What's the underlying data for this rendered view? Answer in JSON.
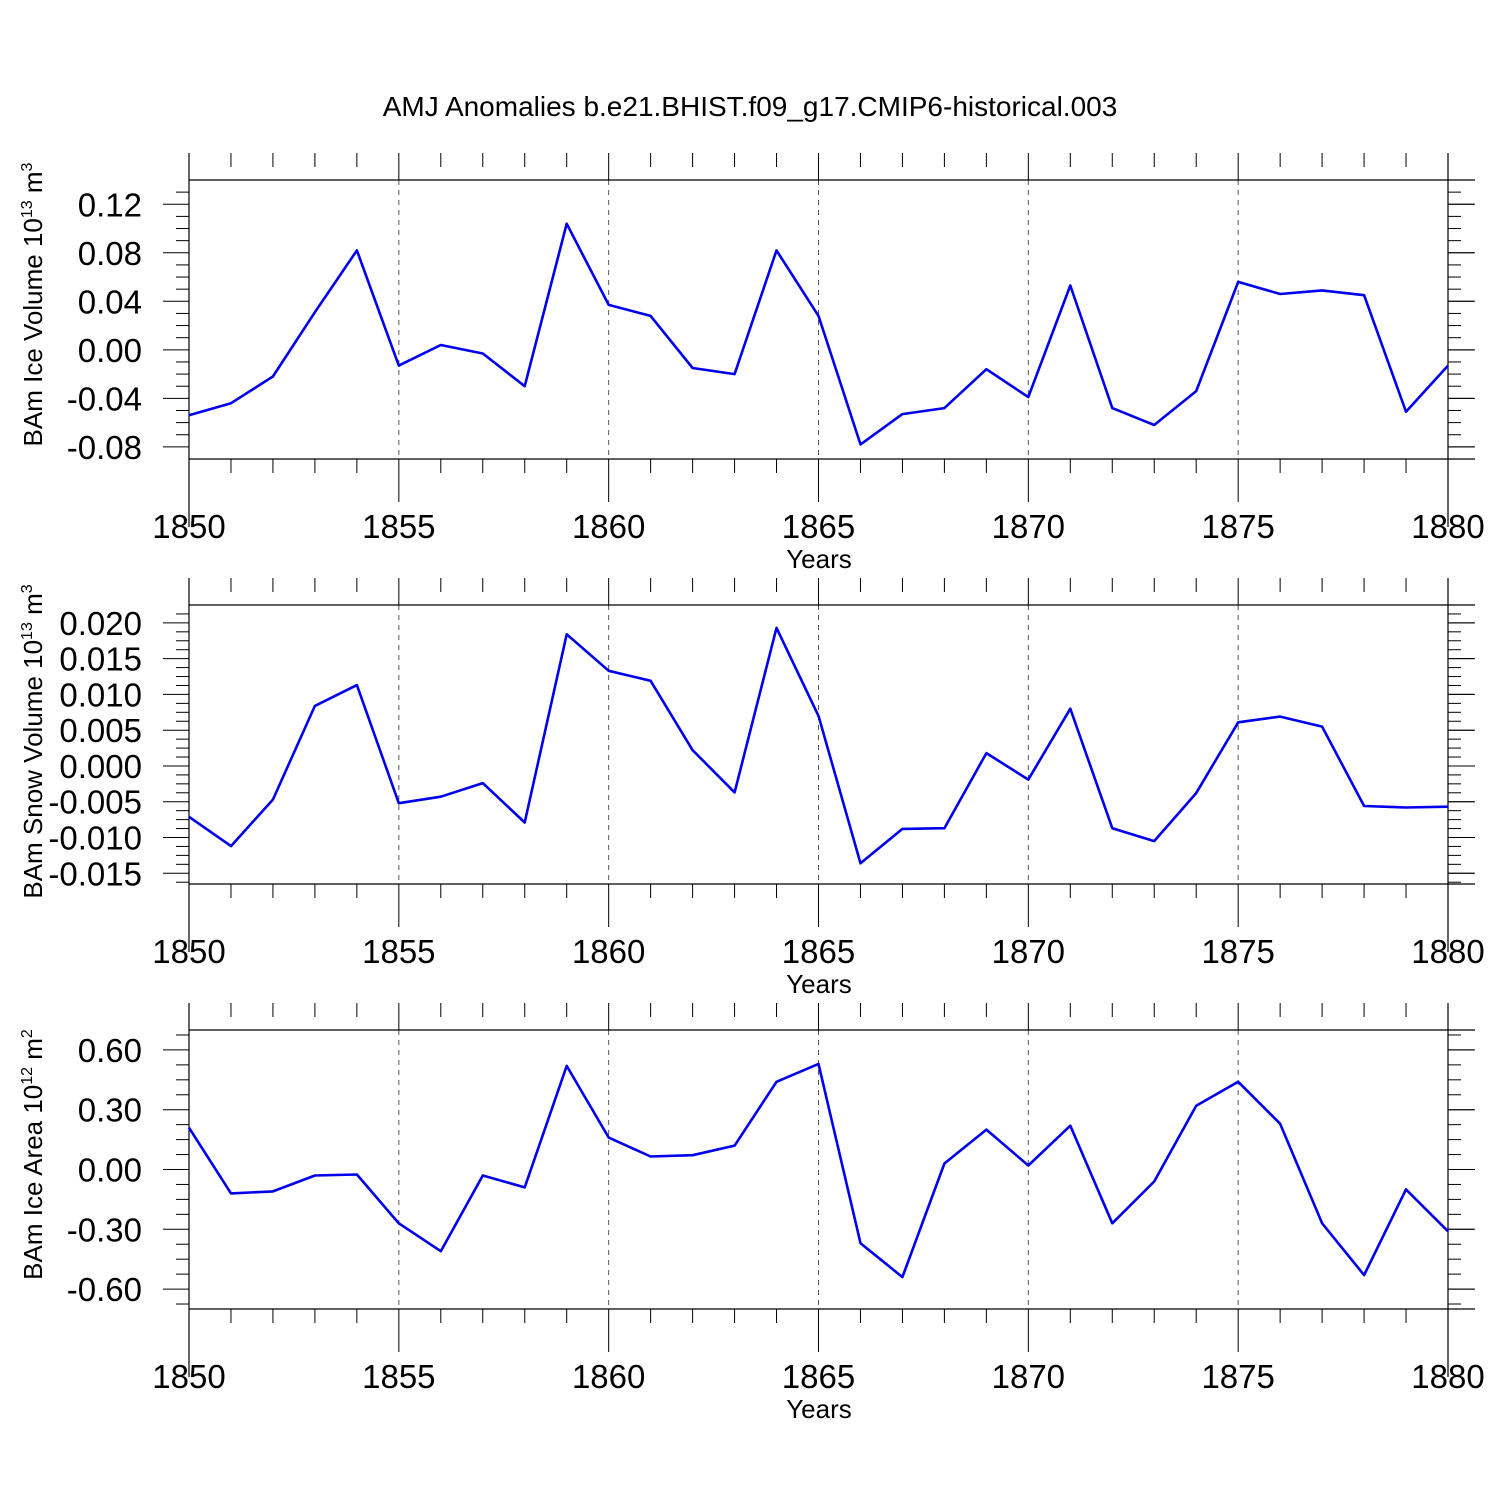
{
  "title": "AMJ Anomalies b.e21.BHIST.f09_g17.CMIP6-historical.003",
  "colors": {
    "line": "#0000ee",
    "axis": "#000000",
    "grid": "#555555"
  },
  "chart_data": [
    {
      "type": "line",
      "ylabel": {
        "text": "BAm Ice Volume 10",
        "sup": "13",
        "unit": " m",
        "unit_sup": "3"
      },
      "xlabel": "Years",
      "xlim": [
        1850,
        1880
      ],
      "ylim": [
        -0.09,
        0.14
      ],
      "xticks": [
        1850,
        1855,
        1860,
        1865,
        1870,
        1875,
        1880
      ],
      "yticks": [
        "0.12",
        "0.08",
        "0.04",
        "0.00",
        "-0.04",
        "-0.08"
      ],
      "grid": "vertical dashed at major x ticks",
      "x": [
        1850,
        1851,
        1852,
        1853,
        1854,
        1855,
        1856,
        1857,
        1858,
        1859,
        1860,
        1861,
        1862,
        1863,
        1864,
        1865,
        1866,
        1867,
        1868,
        1869,
        1870,
        1871,
        1872,
        1873,
        1874,
        1875,
        1876,
        1877,
        1878,
        1879,
        1880
      ],
      "values": [
        -0.054,
        -0.044,
        -0.022,
        0.031,
        0.082,
        -0.013,
        0.004,
        -0.003,
        -0.03,
        0.104,
        0.037,
        0.028,
        -0.015,
        -0.02,
        0.082,
        0.028,
        -0.078,
        -0.053,
        -0.048,
        -0.016,
        -0.039,
        0.053,
        -0.048,
        -0.062,
        -0.034,
        0.056,
        0.046,
        0.049,
        0.045,
        -0.051,
        -0.013
      ]
    },
    {
      "type": "line",
      "ylabel": {
        "text": "BAm Snow Volume 10",
        "sup": "13",
        "unit": " m",
        "unit_sup": "3"
      },
      "xlabel": "Years",
      "xlim": [
        1850,
        1880
      ],
      "ylim": [
        -0.0165,
        0.0225
      ],
      "xticks": [
        1850,
        1855,
        1860,
        1865,
        1870,
        1875,
        1880
      ],
      "yticks": [
        "0.020",
        "0.015",
        "0.010",
        "0.005",
        "0.000",
        "-0.005",
        "-0.010",
        "-0.015"
      ],
      "grid": "vertical dashed at major x ticks",
      "x": [
        1850,
        1851,
        1852,
        1853,
        1854,
        1855,
        1856,
        1857,
        1858,
        1859,
        1860,
        1861,
        1862,
        1863,
        1864,
        1865,
        1866,
        1867,
        1868,
        1869,
        1870,
        1871,
        1872,
        1873,
        1874,
        1875,
        1876,
        1877,
        1878,
        1879,
        1880
      ],
      "values": [
        -0.0071,
        -0.0112,
        -0.0047,
        0.0084,
        0.0113,
        -0.0052,
        -0.0043,
        -0.0024,
        -0.0079,
        0.0184,
        0.0133,
        0.0119,
        0.0022,
        -0.0037,
        0.0193,
        0.007,
        -0.0136,
        -0.0088,
        -0.0087,
        0.0018,
        -0.0019,
        0.008,
        -0.0087,
        -0.0105,
        -0.0038,
        0.0061,
        0.0069,
        0.0055,
        -0.0056,
        -0.0058,
        -0.0057
      ]
    },
    {
      "type": "line",
      "ylabel": {
        "text": "BAm Ice Area 10",
        "sup": "12",
        "unit": " m",
        "unit_sup": "2"
      },
      "xlabel": "Years",
      "xlim": [
        1850,
        1880
      ],
      "ylim": [
        -0.7,
        0.7
      ],
      "xticks": [
        1850,
        1855,
        1860,
        1865,
        1870,
        1875,
        1880
      ],
      "yticks": [
        "0.60",
        "0.30",
        "0.00",
        "-0.30",
        "-0.60"
      ],
      "grid": "vertical dashed at major x ticks",
      "x": [
        1850,
        1851,
        1852,
        1853,
        1854,
        1855,
        1856,
        1857,
        1858,
        1859,
        1860,
        1861,
        1862,
        1863,
        1864,
        1865,
        1866,
        1867,
        1868,
        1869,
        1870,
        1871,
        1872,
        1873,
        1874,
        1875,
        1876,
        1877,
        1878,
        1879,
        1880
      ],
      "values": [
        0.21,
        -0.12,
        -0.11,
        -0.03,
        -0.025,
        -0.27,
        -0.41,
        -0.03,
        -0.09,
        0.52,
        0.16,
        0.065,
        0.072,
        0.12,
        0.44,
        0.53,
        -0.37,
        -0.54,
        0.03,
        0.2,
        0.02,
        0.22,
        -0.27,
        -0.06,
        0.32,
        0.44,
        0.23,
        -0.27,
        -0.53,
        -0.1,
        -0.31
      ]
    }
  ]
}
